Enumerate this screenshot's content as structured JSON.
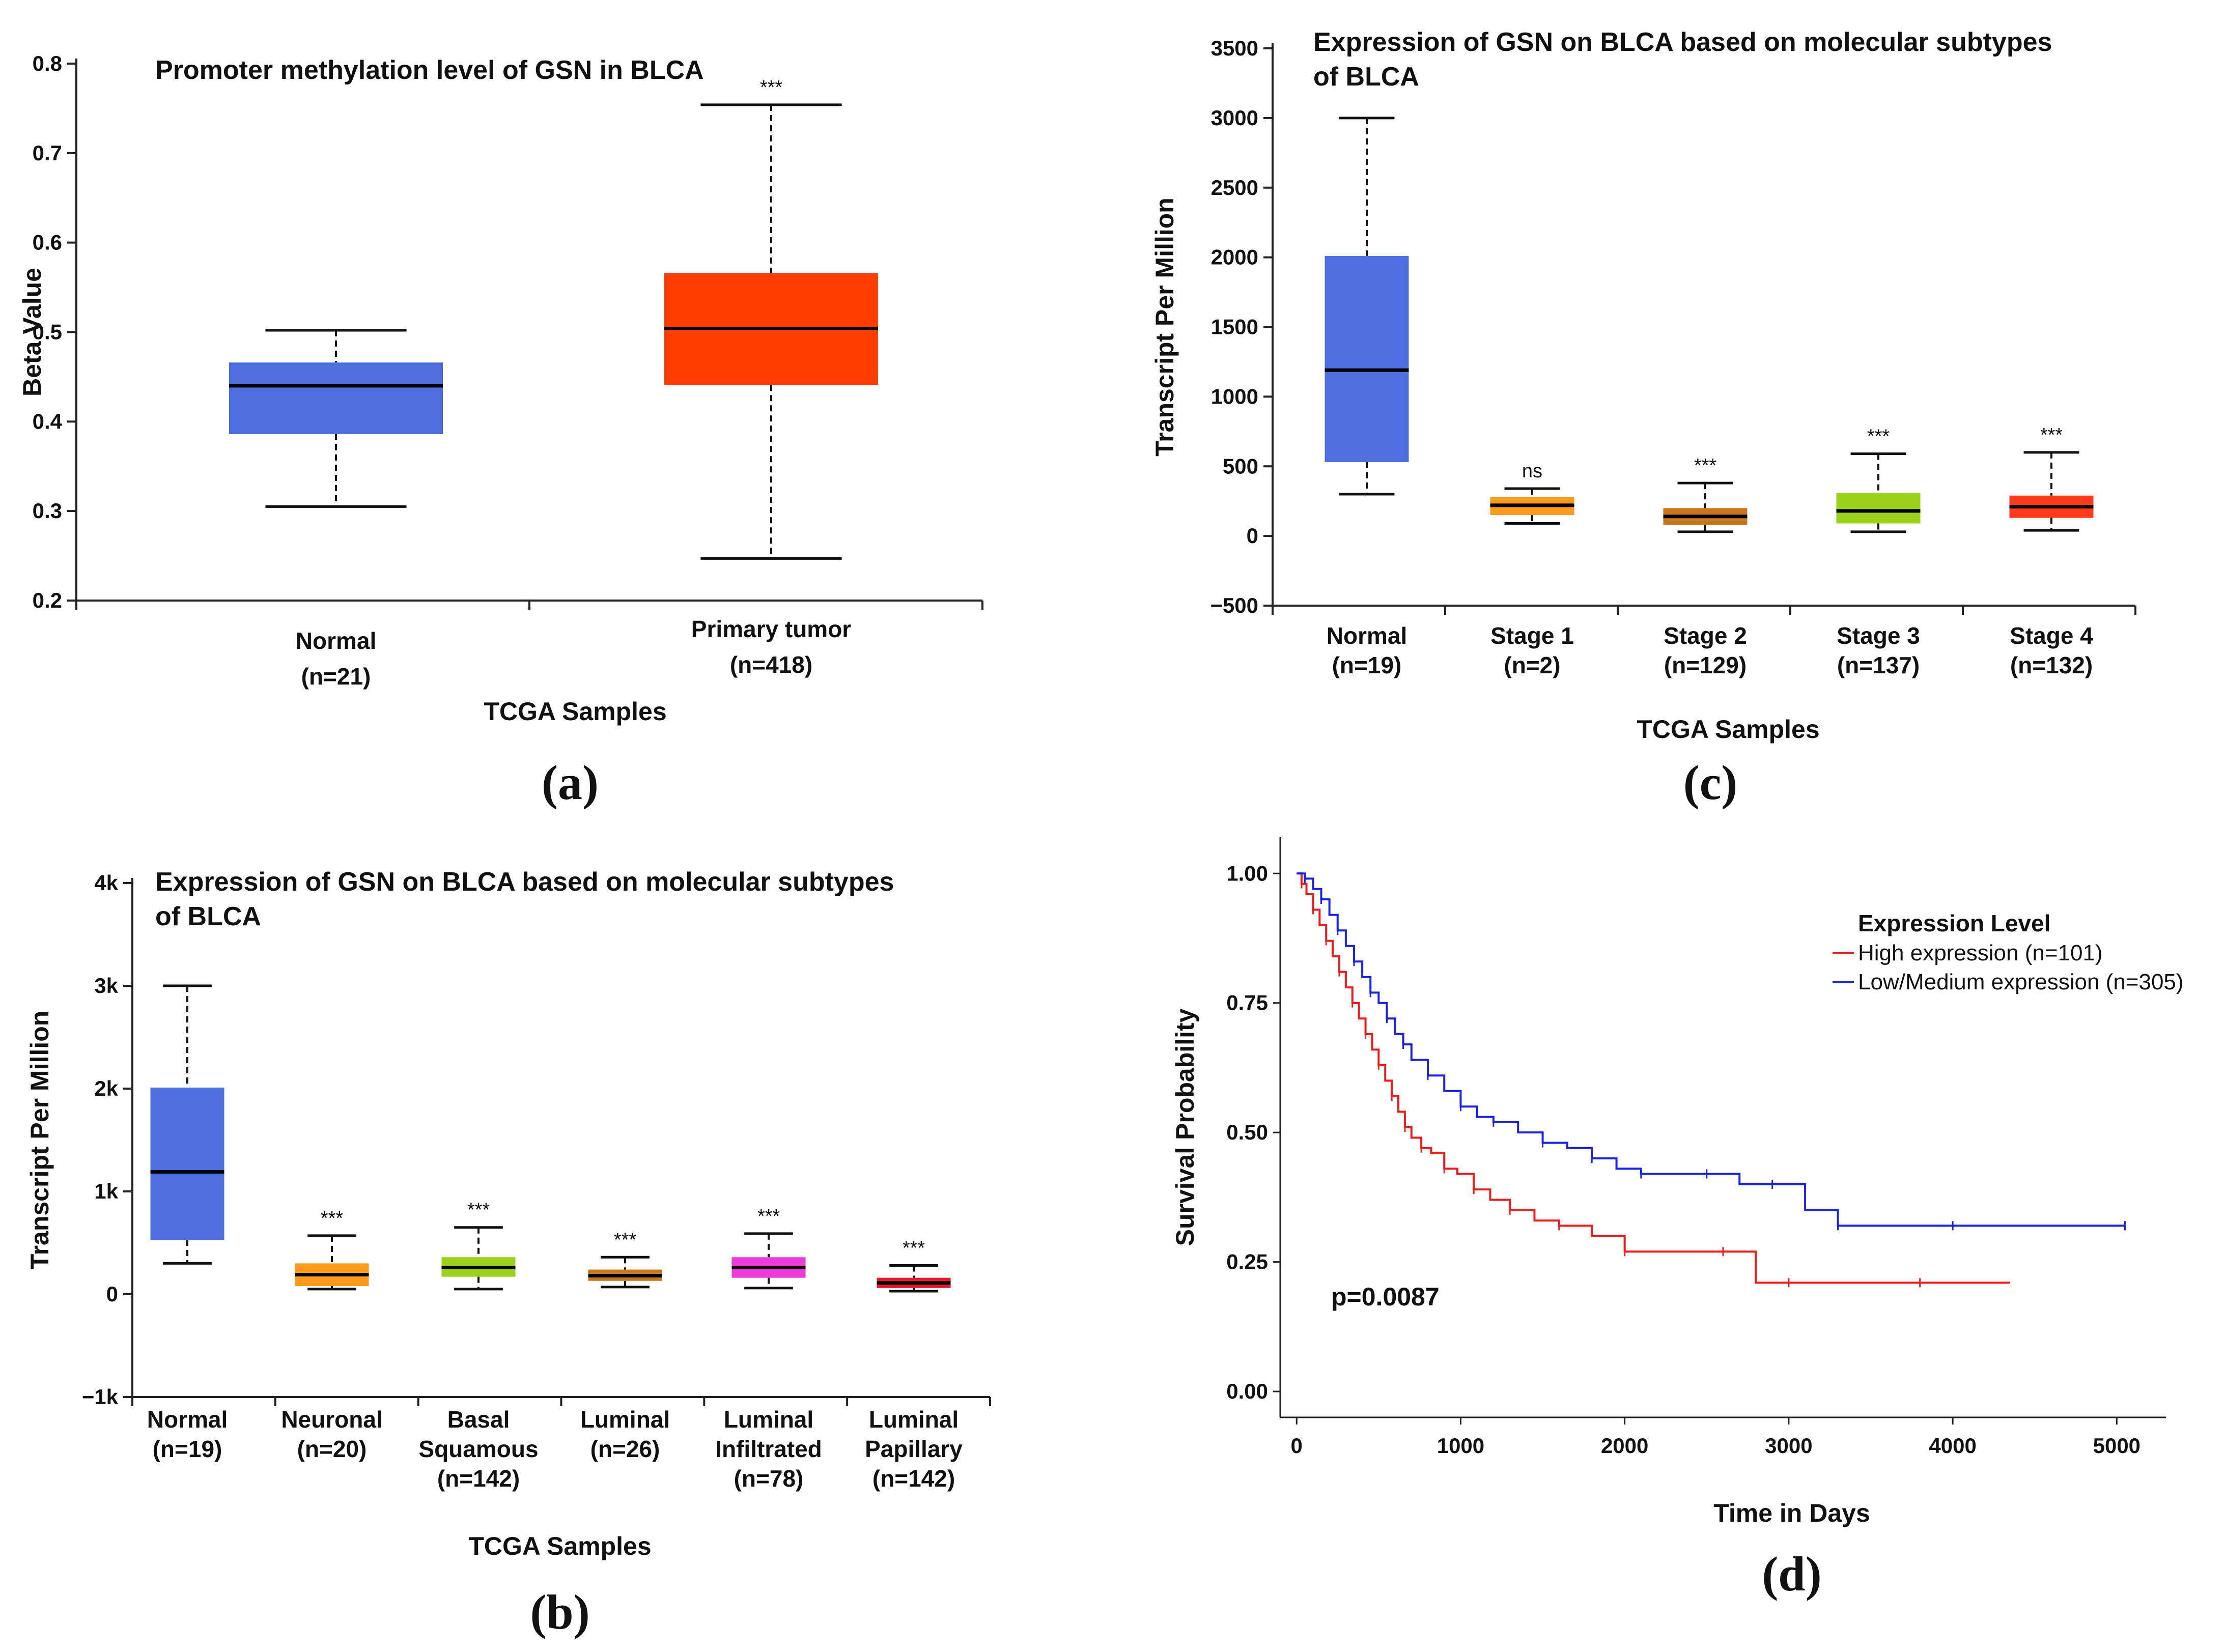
{
  "chart_data": [
    {
      "id": "a",
      "type": "box",
      "panel_label": "(a)",
      "title": "Promoter methylation level of GSN in BLCA",
      "ylabel": "Beta Value",
      "xlabel": "TCGA Samples",
      "ylim": [
        0.2,
        0.8
      ],
      "yticks": [
        0.2,
        0.3,
        0.4,
        0.5,
        0.6,
        0.7,
        0.8
      ],
      "tick_labels": [
        "0.2",
        "0.3",
        "0.4",
        "0.5",
        "0.6",
        "0.7",
        "0.8"
      ],
      "groups": [
        {
          "name": "Normal",
          "n": "(n=21)",
          "min": 0.305,
          "q1": 0.386,
          "median": 0.44,
          "q3": 0.466,
          "max": 0.502,
          "color": "#4d6fe0",
          "sig": ""
        },
        {
          "name": "Primary tumor",
          "n": "(n=418)",
          "min": 0.247,
          "q1": 0.441,
          "median": 0.504,
          "q3": 0.566,
          "max": 0.754,
          "color": "#ff3c00",
          "sig": "***"
        }
      ]
    },
    {
      "id": "b",
      "type": "box",
      "panel_label": "(b)",
      "title": [
        "Expression of GSN on BLCA based on molecular subtypes",
        "of BLCA"
      ],
      "ylabel": "Transcript Per Million",
      "xlabel": "TCGA Samples",
      "ylim": [
        -1000,
        4000
      ],
      "yticks": [
        -1000,
        0,
        1000,
        2000,
        3000,
        4000
      ],
      "tick_labels": [
        "−1k",
        "0",
        "1k",
        "2k",
        "3k",
        "4k"
      ],
      "groups": [
        {
          "name": [
            "Normal",
            "(n=19)"
          ],
          "min": 300,
          "q1": 530,
          "median": 1190,
          "q3": 2010,
          "max": 3000,
          "color": "#4d6fe0",
          "sig": ""
        },
        {
          "name": [
            "Neuronal",
            "(n=20)"
          ],
          "min": 50,
          "q1": 80,
          "median": 190,
          "q3": 300,
          "max": 570,
          "color": "#ff9a1a",
          "sig": "***"
        },
        {
          "name": [
            "Basal",
            "Squamous",
            "(n=142)"
          ],
          "min": 50,
          "q1": 170,
          "median": 260,
          "q3": 360,
          "max": 650,
          "color": "#9ad11a",
          "sig": "***"
        },
        {
          "name": [
            "Luminal",
            "(n=26)"
          ],
          "min": 70,
          "q1": 130,
          "median": 180,
          "q3": 240,
          "max": 360,
          "color": "#c9761e",
          "sig": "***"
        },
        {
          "name": [
            "Luminal",
            "Infiltrated",
            "(n=78)"
          ],
          "min": 60,
          "q1": 160,
          "median": 260,
          "q3": 360,
          "max": 590,
          "color": "#ee3ad8",
          "sig": "***"
        },
        {
          "name": [
            "Luminal",
            "Papillary",
            "(n=142)"
          ],
          "min": 30,
          "q1": 60,
          "median": 110,
          "q3": 160,
          "max": 280,
          "color": "#e8192c",
          "sig": "***"
        }
      ]
    },
    {
      "id": "c",
      "type": "box",
      "panel_label": "(c)",
      "title": [
        "Expression of GSN on BLCA based on molecular subtypes",
        "of BLCA"
      ],
      "ylabel": "Transcript Per Million",
      "xlabel": "TCGA Samples",
      "ylim": [
        -500,
        3500
      ],
      "yticks": [
        -500,
        0,
        500,
        1000,
        1500,
        2000,
        2500,
        3000,
        3500
      ],
      "tick_labels": [
        "−500",
        "0",
        "500",
        "1000",
        "1500",
        "2000",
        "2500",
        "3000",
        "3500"
      ],
      "groups": [
        {
          "name": [
            "Normal",
            "(n=19)"
          ],
          "min": 300,
          "q1": 530,
          "median": 1190,
          "q3": 2010,
          "max": 3000,
          "color": "#4d6fe0",
          "sig": ""
        },
        {
          "name": [
            "Stage 1",
            "(n=2)"
          ],
          "min": 90,
          "q1": 150,
          "median": 220,
          "q3": 280,
          "max": 340,
          "color": "#ff9a1a",
          "sig": "ns"
        },
        {
          "name": [
            "Stage 2",
            "(n=129)"
          ],
          "min": 30,
          "q1": 80,
          "median": 140,
          "q3": 200,
          "max": 380,
          "color": "#c9761e",
          "sig": "***"
        },
        {
          "name": [
            "Stage 3",
            "(n=137)"
          ],
          "min": 30,
          "q1": 90,
          "median": 180,
          "q3": 310,
          "max": 590,
          "color": "#9ad11a",
          "sig": "***"
        },
        {
          "name": [
            "Stage 4",
            "(n=132)"
          ],
          "min": 40,
          "q1": 130,
          "median": 210,
          "q3": 290,
          "max": 600,
          "color": "#ff3a1a",
          "sig": "***"
        }
      ]
    },
    {
      "id": "d",
      "type": "line",
      "subtype": "kaplan-meier",
      "panel_label": "(d)",
      "ylabel": "Survival Probability",
      "xlabel": "Time in Days",
      "xlim": [
        -100,
        5300
      ],
      "ylim": [
        -0.05,
        1.07
      ],
      "xticks": [
        0,
        1000,
        2000,
        3000,
        4000,
        5000
      ],
      "yticks": [
        0.0,
        0.25,
        0.5,
        0.75,
        1.0
      ],
      "ytick_labels": [
        "0.00",
        "0.25",
        "0.50",
        "0.75",
        "1.00"
      ],
      "p_value": "p=0.0087",
      "legend": {
        "title": "Expression Level",
        "position": "top-right",
        "entries": [
          "High expression (n=101)",
          "Low/Medium expression (n=305)"
        ]
      },
      "series": [
        {
          "name": "High expression (n=101)",
          "color": "#ee1c1c",
          "x": [
            0,
            30,
            60,
            100,
            140,
            180,
            220,
            260,
            300,
            340,
            380,
            420,
            460,
            500,
            540,
            580,
            620,
            660,
            700,
            760,
            820,
            900,
            980,
            1080,
            1180,
            1300,
            1450,
            1600,
            1800,
            2000,
            2300,
            2600,
            2800,
            3000,
            3400,
            3800,
            4350
          ],
          "y": [
            1.0,
            0.98,
            0.96,
            0.93,
            0.9,
            0.87,
            0.84,
            0.81,
            0.78,
            0.75,
            0.72,
            0.69,
            0.66,
            0.63,
            0.6,
            0.57,
            0.54,
            0.51,
            0.49,
            0.47,
            0.46,
            0.43,
            0.42,
            0.39,
            0.37,
            0.35,
            0.33,
            0.32,
            0.3,
            0.27,
            0.27,
            0.27,
            0.21,
            0.21,
            0.21,
            0.21,
            0.21
          ]
        },
        {
          "name": "Low/Medium expression (n=305)",
          "color": "#1a22e8",
          "x": [
            0,
            50,
            100,
            150,
            200,
            250,
            300,
            350,
            400,
            450,
            500,
            550,
            600,
            650,
            700,
            800,
            900,
            1000,
            1100,
            1200,
            1350,
            1500,
            1650,
            1800,
            1950,
            2100,
            2300,
            2500,
            2700,
            2900,
            3100,
            3300,
            3600,
            4000,
            4500,
            5050
          ],
          "y": [
            1.0,
            0.99,
            0.97,
            0.95,
            0.92,
            0.89,
            0.86,
            0.83,
            0.8,
            0.77,
            0.75,
            0.72,
            0.69,
            0.67,
            0.64,
            0.61,
            0.58,
            0.55,
            0.53,
            0.52,
            0.5,
            0.48,
            0.47,
            0.45,
            0.43,
            0.42,
            0.42,
            0.42,
            0.4,
            0.4,
            0.35,
            0.32,
            0.32,
            0.32,
            0.32,
            0.32
          ]
        }
      ]
    }
  ]
}
